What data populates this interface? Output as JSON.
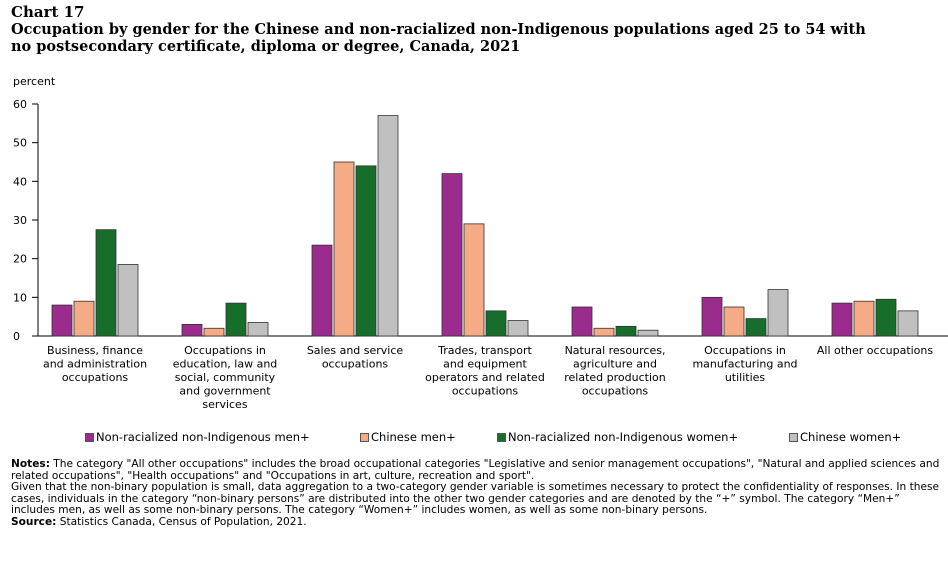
{
  "header": {
    "chart_label": "Chart 17",
    "title_line1": "Occupation by gender for the Chinese and non-racialized non-Indigenous populations aged 25 to 54 with",
    "title_line2": "no postsecondary certificate, diploma or degree, Canada, 2021"
  },
  "chart_data": {
    "type": "bar",
    "title": "Occupation by gender for the Chinese and non-racialized non-Indigenous populations aged 25 to 54 with no postsecondary certificate, diploma or degree, Canada, 2021",
    "ylabel": "percent",
    "xlabel": "",
    "ylim": [
      0,
      60
    ],
    "yticks": [
      0,
      10,
      20,
      30,
      40,
      50,
      60
    ],
    "grid": false,
    "legend_position": "bottom",
    "categories": [
      [
        "Business, finance",
        "and administration",
        "occupations"
      ],
      [
        "Occupations in",
        "education, law and",
        "social, community",
        "and government",
        "services"
      ],
      [
        "Sales and service",
        "occupations"
      ],
      [
        "Trades, transport",
        "and equipment",
        "operators and related",
        "occupations"
      ],
      [
        "Natural resources,",
        "agriculture and",
        "related production",
        "occupations"
      ],
      [
        "Occupations in",
        "manufacturing and",
        "utilities"
      ],
      [
        "All other occupations"
      ]
    ],
    "series": [
      {
        "name": "Non-racialized non-Indigenous men+",
        "color": "#9b2c8e",
        "values": [
          8,
          3,
          23.5,
          42,
          7.5,
          10,
          8.5
        ]
      },
      {
        "name": "Chinese men+",
        "color": "#f4ab86",
        "values": [
          9,
          2,
          45,
          29,
          2,
          7.5,
          9
        ]
      },
      {
        "name": "Non-racialized non-Indigenous women+",
        "color": "#166e2a",
        "values": [
          27.5,
          8.5,
          44,
          6.5,
          2.5,
          4.5,
          9.5
        ]
      },
      {
        "name": "Chinese women+",
        "color": "#c0c0c0",
        "values": [
          18.5,
          3.5,
          57,
          4,
          1.5,
          12,
          6.5
        ]
      }
    ]
  },
  "notes": {
    "notes_label": "Notes:",
    "notes_text": " The category \"All other occupations\" includes the  broad occupational categories \"Legislative and senior management occupations\", \"Natural and applied sciences and related occupations\", \"Health occupations\" and \"Occupations in art, culture, recreation and sport\".",
    "notes_text2": "Given that the non-binary population is small, data aggregation to a two-category gender variable is sometimes necessary to protect the confidentiality of responses. In these cases, individuals in the category “non-binary persons” are distributed into the other two gender categories and are denoted by the “+” symbol. The category “Men+” includes men, as well as some non-binary persons. The category “Women+” includes women, as well as some non-binary persons.",
    "source_label": "Source:",
    "source_text": " Statistics Canada, Census of Population, 2021."
  }
}
